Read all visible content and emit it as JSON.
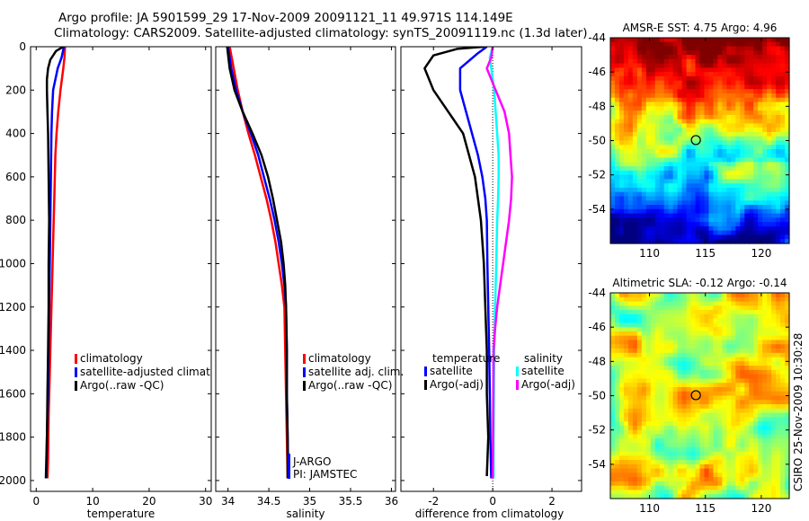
{
  "header": {
    "title_line1": "Argo profile: JA 5901599_29 17-Nov-2009 20091121_11 49.971S 114.149E",
    "title_line2": "Climatology: CARS2009. Satellite-adjusted climatology: synTS_20091119.nc (1.3d later)"
  },
  "colors": {
    "climatology": "#ff0000",
    "satellite": "#0000ff",
    "argo": "#000000",
    "sal_sat": "#00ffff",
    "sal_argo": "#ff00ff"
  },
  "footer": {
    "credit": "CSIRO 25-Nov-2009 10:30:28"
  },
  "chart_data": [
    {
      "type": "line",
      "id": "temperature",
      "xlabel": "temperature",
      "ylabel": "",
      "xlim": [
        -1,
        31
      ],
      "ylim": [
        2050,
        0
      ],
      "xticks": [
        0,
        10,
        20,
        30
      ],
      "yticks": [
        0,
        200,
        400,
        600,
        800,
        1000,
        1200,
        1400,
        1600,
        1800,
        2000
      ],
      "legend": [
        "climatology",
        "satellite-adjusted climatology",
        "Argo(..raw -QC)"
      ],
      "series": [
        {
          "name": "climatology",
          "color": "#ff0000",
          "points": [
            [
              5.1,
              0
            ],
            [
              5.0,
              50
            ],
            [
              4.8,
              100
            ],
            [
              4.3,
              200
            ],
            [
              3.9,
              300
            ],
            [
              3.6,
              400
            ],
            [
              3.4,
              500
            ],
            [
              3.2,
              700
            ],
            [
              3.0,
              900
            ],
            [
              2.8,
              1100
            ],
            [
              2.6,
              1300
            ],
            [
              2.4,
              1500
            ],
            [
              2.2,
              1700
            ],
            [
              2.1,
              1900
            ],
            [
              2.0,
              1990
            ]
          ]
        },
        {
          "name": "satellite-adjusted climatology",
          "color": "#0000ff",
          "points": [
            [
              4.9,
              0
            ],
            [
              4.5,
              50
            ],
            [
              3.8,
              100
            ],
            [
              3.0,
              200
            ],
            [
              2.8,
              300
            ],
            [
              2.7,
              400
            ],
            [
              2.6,
              600
            ],
            [
              2.5,
              800
            ],
            [
              2.4,
              1000
            ],
            [
              2.3,
              1200
            ],
            [
              2.2,
              1400
            ],
            [
              2.1,
              1600
            ],
            [
              1.9,
              1800
            ],
            [
              1.8,
              1990
            ]
          ]
        },
        {
          "name": "Argo(..raw -QC)",
          "color": "#000000",
          "points": [
            [
              4.8,
              0
            ],
            [
              3.5,
              20
            ],
            [
              2.5,
              60
            ],
            [
              2.1,
              100
            ],
            [
              1.9,
              150
            ],
            [
              1.9,
              200
            ],
            [
              2.0,
              300
            ],
            [
              2.1,
              400
            ],
            [
              2.2,
              600
            ],
            [
              2.3,
              800
            ],
            [
              2.2,
              1000
            ],
            [
              2.2,
              1200
            ],
            [
              2.1,
              1400
            ],
            [
              2.0,
              1600
            ],
            [
              1.9,
              1800
            ],
            [
              1.7,
              1990
            ]
          ]
        }
      ]
    },
    {
      "type": "line",
      "id": "salinity",
      "xlabel": "salinity",
      "xlim": [
        33.85,
        36.05
      ],
      "ylim": [
        2050,
        0
      ],
      "xticks": [
        34,
        34.5,
        35,
        35.5,
        36
      ],
      "legend": [
        "climatology",
        "satellite adj. clim.",
        "Argo(..raw -QC)"
      ],
      "annotations": [
        "J-ARGO",
        "PI: JAMSTEC"
      ],
      "series": [
        {
          "name": "climatology",
          "color": "#ff0000",
          "points": [
            [
              34.02,
              0
            ],
            [
              34.07,
              100
            ],
            [
              34.12,
              200
            ],
            [
              34.18,
              300
            ],
            [
              34.25,
              400
            ],
            [
              34.33,
              500
            ],
            [
              34.4,
              600
            ],
            [
              34.47,
              700
            ],
            [
              34.53,
              800
            ],
            [
              34.58,
              900
            ],
            [
              34.62,
              1000
            ],
            [
              34.66,
              1100
            ],
            [
              34.69,
              1200
            ],
            [
              34.7,
              1400
            ],
            [
              34.71,
              1600
            ],
            [
              34.72,
              1800
            ],
            [
              34.73,
              1990
            ]
          ]
        },
        {
          "name": "satellite adj. clim.",
          "color": "#0000ff",
          "points": [
            [
              34.0,
              0
            ],
            [
              34.04,
              100
            ],
            [
              34.1,
              200
            ],
            [
              34.18,
              300
            ],
            [
              34.28,
              400
            ],
            [
              34.37,
              500
            ],
            [
              34.44,
              600
            ],
            [
              34.51,
              700
            ],
            [
              34.57,
              800
            ],
            [
              34.62,
              900
            ],
            [
              34.66,
              1000
            ],
            [
              34.69,
              1100
            ],
            [
              34.71,
              1200
            ],
            [
              34.72,
              1400
            ],
            [
              34.72,
              1600
            ],
            [
              34.73,
              1800
            ],
            [
              34.74,
              1990
            ]
          ]
        },
        {
          "name": "Argo(..raw -QC)",
          "color": "#000000",
          "points": [
            [
              33.99,
              0
            ],
            [
              34.02,
              100
            ],
            [
              34.08,
              200
            ],
            [
              34.18,
              300
            ],
            [
              34.3,
              400
            ],
            [
              34.41,
              500
            ],
            [
              34.49,
              600
            ],
            [
              34.55,
              700
            ],
            [
              34.6,
              800
            ],
            [
              34.65,
              900
            ],
            [
              34.68,
              1000
            ],
            [
              34.7,
              1100
            ],
            [
              34.71,
              1200
            ],
            [
              34.72,
              1400
            ],
            [
              34.72,
              1600
            ],
            [
              34.73,
              1800
            ],
            [
              34.73,
              1990
            ]
          ]
        }
      ]
    },
    {
      "type": "line",
      "id": "difference",
      "xlabel": "difference from climatology",
      "xlim": [
        -3.1,
        3.0
      ],
      "ylim": [
        2050,
        0
      ],
      "xticks": [
        -2,
        0,
        2
      ],
      "legend": [
        "temperature",
        "satellite",
        "Argo(-adj)",
        "salinity",
        "satellite",
        "Argo(-adj)"
      ],
      "series": [
        {
          "name": "temperature satellite",
          "color": "#0000ff",
          "points": [
            [
              -0.2,
              0
            ],
            [
              -0.5,
              30
            ],
            [
              -1.1,
              100
            ],
            [
              -1.1,
              200
            ],
            [
              -0.9,
              300
            ],
            [
              -0.7,
              400
            ],
            [
              -0.5,
              500
            ],
            [
              -0.35,
              600
            ],
            [
              -0.25,
              700
            ],
            [
              -0.2,
              800
            ],
            [
              -0.18,
              1000
            ],
            [
              -0.15,
              1200
            ],
            [
              -0.12,
              1400
            ],
            [
              -0.1,
              1600
            ],
            [
              -0.08,
              1800
            ],
            [
              -0.05,
              1990
            ]
          ]
        },
        {
          "name": "temperature Argo(-adj)",
          "color": "#000000",
          "points": [
            [
              -0.3,
              0
            ],
            [
              -1.2,
              10
            ],
            [
              -2.0,
              40
            ],
            [
              -2.3,
              100
            ],
            [
              -2.0,
              200
            ],
            [
              -1.5,
              300
            ],
            [
              -1.0,
              400
            ],
            [
              -0.8,
              500
            ],
            [
              -0.6,
              600
            ],
            [
              -0.5,
              700
            ],
            [
              -0.4,
              800
            ],
            [
              -0.3,
              1000
            ],
            [
              -0.25,
              1200
            ],
            [
              -0.2,
              1400
            ],
            [
              -0.2,
              1600
            ],
            [
              -0.15,
              1800
            ],
            [
              -0.2,
              1980
            ]
          ]
        },
        {
          "name": "salinity satellite",
          "color": "#00ffff",
          "points": [
            [
              0.0,
              0
            ],
            [
              -0.1,
              50
            ],
            [
              -0.05,
              100
            ],
            [
              0.05,
              200
            ],
            [
              0.1,
              300
            ],
            [
              0.15,
              400
            ],
            [
              0.2,
              500
            ],
            [
              0.2,
              600
            ],
            [
              0.18,
              700
            ],
            [
              0.15,
              800
            ],
            [
              0.12,
              1000
            ],
            [
              0.08,
              1200
            ],
            [
              0.05,
              1400
            ],
            [
              0.04,
              1600
            ],
            [
              0.03,
              1800
            ],
            [
              0.03,
              1990
            ]
          ]
        },
        {
          "name": "salinity Argo(-adj)",
          "color": "#ff00ff",
          "points": [
            [
              0.0,
              0
            ],
            [
              -0.05,
              50
            ],
            [
              -0.2,
              100
            ],
            [
              0.1,
              200
            ],
            [
              0.4,
              300
            ],
            [
              0.55,
              400
            ],
            [
              0.6,
              500
            ],
            [
              0.65,
              600
            ],
            [
              0.62,
              700
            ],
            [
              0.55,
              800
            ],
            [
              0.45,
              900
            ],
            [
              0.35,
              1000
            ],
            [
              0.25,
              1100
            ],
            [
              0.15,
              1200
            ],
            [
              0.08,
              1300
            ],
            [
              0.03,
              1400
            ],
            [
              0.02,
              1600
            ],
            [
              0.01,
              1800
            ],
            [
              0.0,
              1990
            ]
          ]
        }
      ]
    },
    {
      "type": "heatmap",
      "id": "sst_map",
      "title": "AMSR-E SST: 4.75  Argo: 4.96",
      "xlim": [
        106.5,
        122.5
      ],
      "ylim": [
        -56,
        -44
      ],
      "xticks": [
        110,
        115,
        120
      ],
      "yticks": [
        -44,
        -46,
        -48,
        -50,
        -52,
        -54
      ],
      "marker": {
        "lon": 114.149,
        "lat": -49.971
      }
    },
    {
      "type": "heatmap",
      "id": "sla_map",
      "title": "Altimetric SLA: -0.12  Argo: -0.14",
      "xlim": [
        106.5,
        122.5
      ],
      "ylim": [
        -56,
        -44
      ],
      "xticks": [
        110,
        115,
        120
      ],
      "yticks": [
        -44,
        -46,
        -48,
        -50,
        -52,
        -54
      ],
      "marker": {
        "lon": 114.149,
        "lat": -49.971
      }
    }
  ]
}
